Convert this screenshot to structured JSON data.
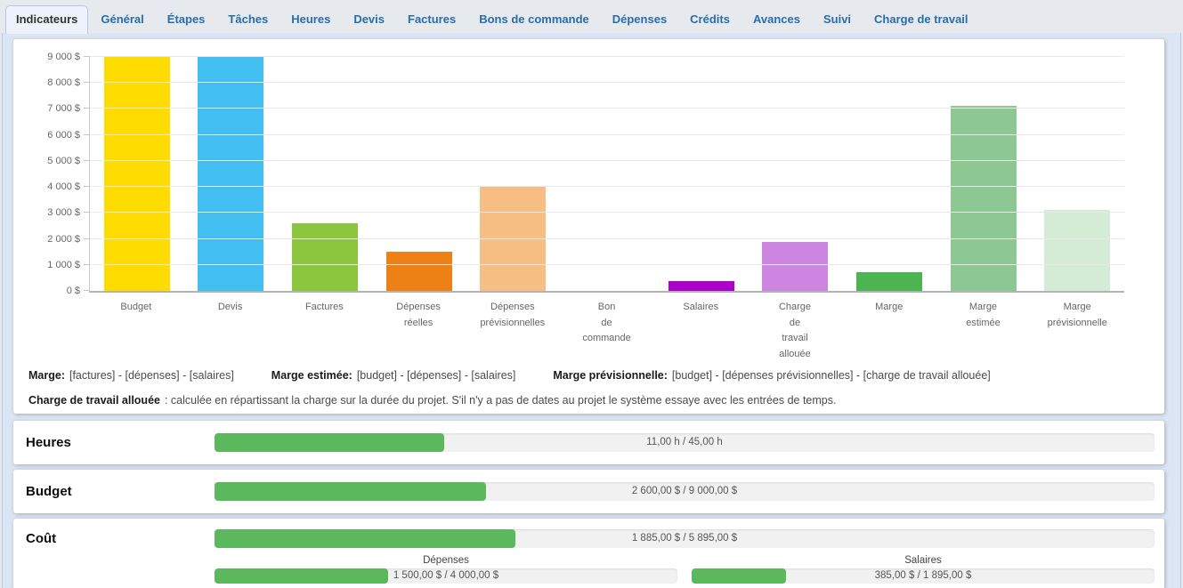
{
  "tabs": {
    "active": "Indicateurs",
    "items": [
      "Indicateurs",
      "Général",
      "Étapes",
      "Tâches",
      "Heures",
      "Devis",
      "Factures",
      "Bons de commande",
      "Dépenses",
      "Crédits",
      "Avances",
      "Suivi",
      "Charge de travail"
    ]
  },
  "chart_data": {
    "type": "bar",
    "title": "",
    "xlabel": "",
    "ylabel": "",
    "grid": true,
    "legend": false,
    "ylim": [
      0,
      9000
    ],
    "ytick_step": 1000,
    "ytick_labels": [
      "0 $",
      "1 000 $",
      "2 000 $",
      "3 000 $",
      "4 000 $",
      "5 000 $",
      "6 000 $",
      "7 000 $",
      "8 000 $",
      "9 000 $"
    ],
    "categories": [
      "Budget",
      "Devis",
      "Factures",
      "Dépenses réelles",
      "Dépenses prévisionnelles",
      "Bon de commande",
      "Salaires",
      "Charge de travail allouée",
      "Marge",
      "Marge estimée",
      "Marge prévisionnelle"
    ],
    "categories_wrapped": [
      "Budget",
      "Devis",
      "Factures",
      "Dépenses\nréelles",
      "Dépenses\nprévisionnelles",
      "Bon\nde\ncommande",
      "Salaires",
      "Charge\nde\ntravail\nallouée",
      "Marge",
      "Marge\nestimée",
      "Marge\nprévisionnelle"
    ],
    "values": [
      9000,
      9000,
      2600,
      1500,
      4000,
      0,
      385,
      1895,
      715,
      7115,
      3105
    ],
    "bar_colors": [
      "#ffdc00",
      "#42bff0",
      "#8cc63e",
      "#ee8116",
      "#f6be82",
      "#cccccc",
      "#aa00c8",
      "#cc85e0",
      "#4cb450",
      "#8dc892",
      "#d4ecd5"
    ]
  },
  "notes": {
    "definitions": [
      {
        "term": "Marge:",
        "def": "[factures] - [dépenses] - [salaires]"
      },
      {
        "term": "Marge estimée:",
        "def": "[budget] - [dépenses] - [salaires]"
      },
      {
        "term": "Marge prévisionnelle:",
        "def": "[budget] - [dépenses prévisionnelles] - [charge de travail allouée]"
      }
    ],
    "workload_term": "Charge de travail allouée",
    "workload_def": ": calculée en répartissant la charge sur la durée du projet. S'il n'y a pas de dates au projet le système essaye avec les entrées de temps."
  },
  "progress": {
    "fill_color": "#5cb85c",
    "sections": [
      {
        "id": "heures",
        "label": "Heures",
        "display": "11,00 h / 45,00 h",
        "current": 11,
        "total": 45,
        "subs": []
      },
      {
        "id": "budget",
        "label": "Budget",
        "display": "2 600,00 $ / 9 000,00 $",
        "current": 2600,
        "total": 9000,
        "subs": []
      },
      {
        "id": "cout",
        "label": "Coût",
        "display": "1 885,00 $ / 5 895,00 $",
        "current": 1885,
        "total": 5895,
        "subs": [
          {
            "id": "depenses",
            "label": "Dépenses",
            "display": "1 500,00 $ / 4 000,00 $",
            "current": 1500,
            "total": 4000
          },
          {
            "id": "salaires",
            "label": "Salaires",
            "display": "385,00 $ / 1 895,00 $",
            "current": 385,
            "total": 1895
          }
        ]
      }
    ]
  },
  "colors": {
    "accent_blue": "#2a6ea8",
    "page_bg": "#dce5f4",
    "topbar_bg": "#e6e9ee",
    "frame_border": "#bdc9e0",
    "panel_bg": "#ffffff",
    "track_bg": "#f1f1f1",
    "grid_line": "#e9e9e9",
    "axis_line": "#b3b3b3",
    "progress_fill": "#5cb85c"
  }
}
